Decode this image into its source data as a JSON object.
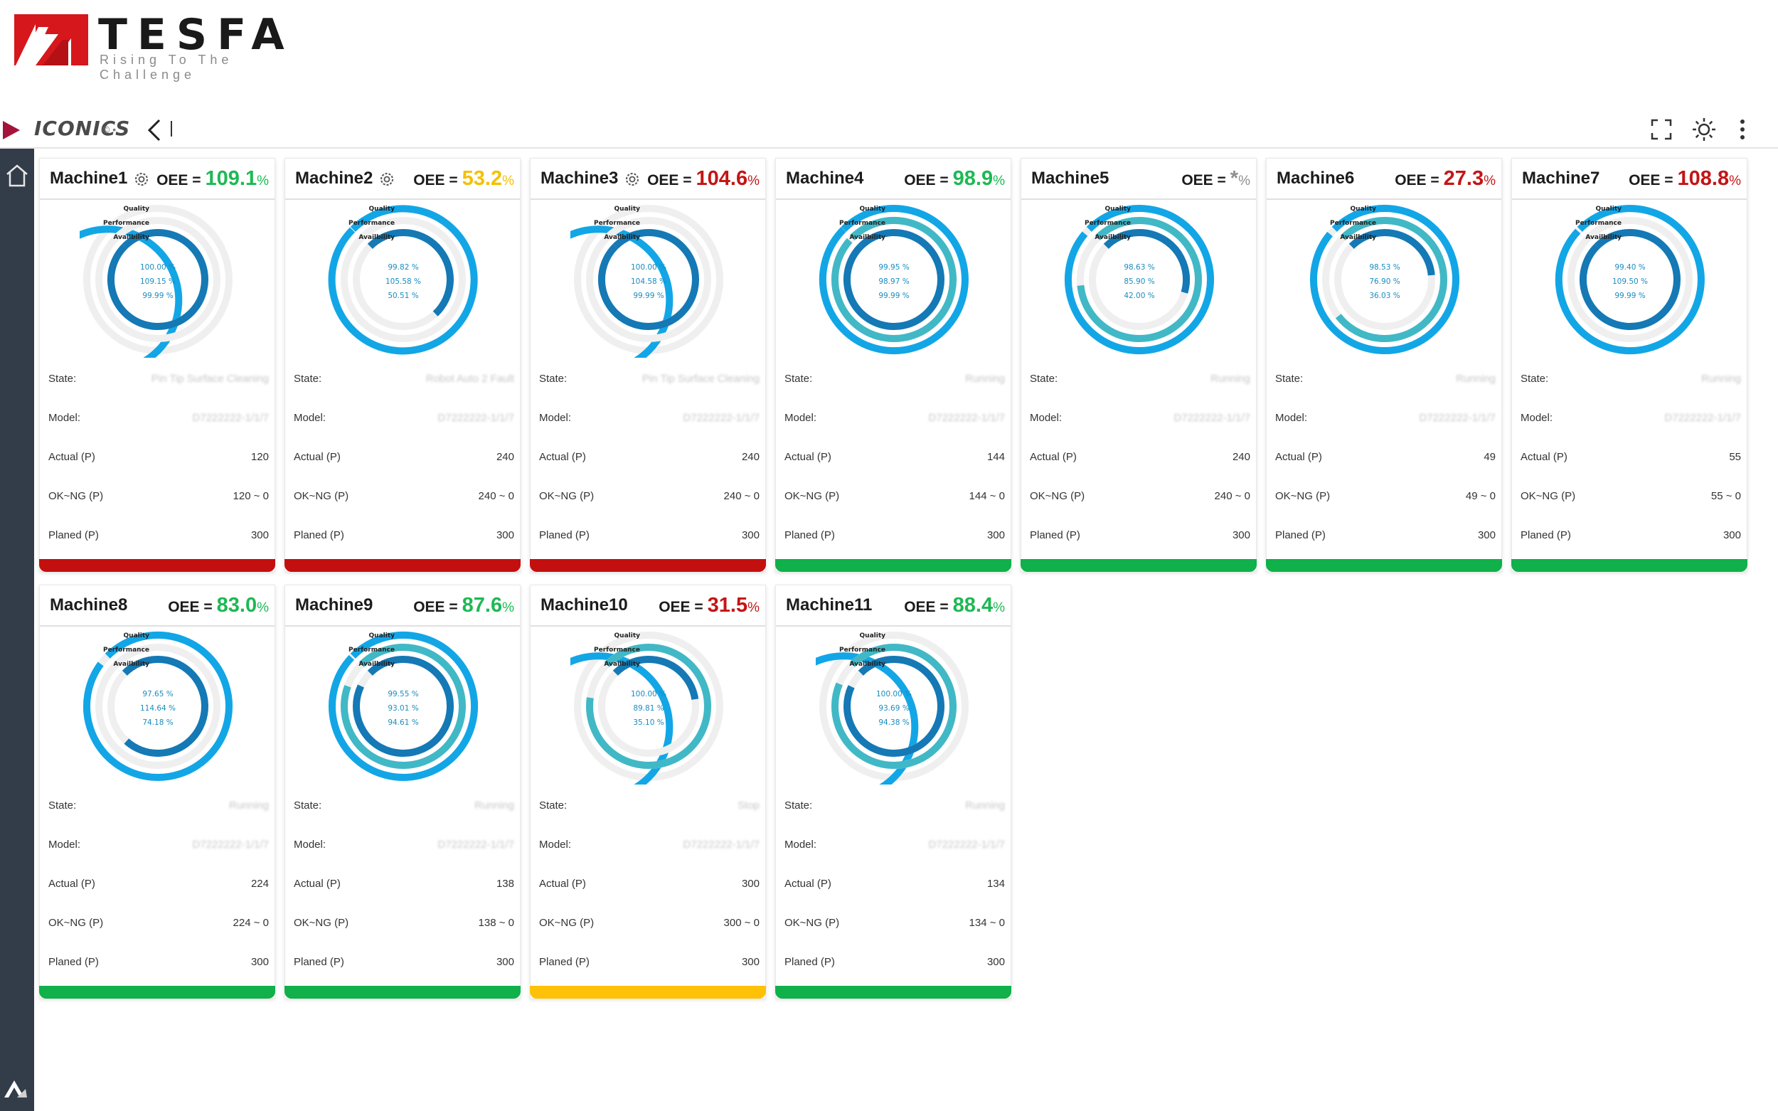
{
  "brand": {
    "name": "TESFA",
    "tagline": "Rising To The Challenge"
  },
  "toolbar": {
    "app_logo": "ICONICS",
    "app_logo_mark": "© •"
  },
  "labels": {
    "oee": "OEE =",
    "state": "State:",
    "model": "Model:",
    "actual": "Actual (P)",
    "ok_ng": "OK~NG (P)",
    "planned": "Planed (P)"
  },
  "rings_legend": {
    "quality": "Quality",
    "performance": "Performance",
    "availability": "Availbility"
  },
  "colors": {
    "outer_ring": "#12a6e6",
    "middle_ring": "#41b8c6",
    "inner_ring": "#1479b5",
    "track": "#efefef",
    "status_red": "#c40f0f",
    "status_green": "#10b04a",
    "status_yellow": "#ffc107",
    "oee_green": "#1db954",
    "oee_red": "#c41515",
    "oee_yellow": "#f5c000",
    "oee_gray": "#8f8f8f"
  },
  "machines": [
    {
      "name": "Machine1",
      "gear": true,
      "oee": "109.1",
      "oee_color": "#1db954",
      "quality": 100.0,
      "performance": 109.15,
      "availability": 99.99,
      "quality_text": "100.00 %",
      "performance_text": "109.15 %",
      "availability_text": "99.99 %",
      "state": "Pin Tip Surface Cleaning",
      "state_prefix": "Pin",
      "model": "D7222222-1/1/7",
      "actual": "120",
      "ok_ng": "120 ~ 0",
      "planned": "300",
      "status": "red"
    },
    {
      "name": "Machine2",
      "gear": true,
      "oee": "53.2",
      "oee_color": "#f5c000",
      "quality": 99.82,
      "performance": 105.58,
      "availability": 50.51,
      "quality_text": "99.82 %",
      "performance_text": "105.58 %",
      "availability_text": "50.51 %",
      "state": "Robot Auto 2 Fault",
      "state_prefix": "",
      "model": "D7222222-1/1/7",
      "actual": "240",
      "ok_ng": "240 ~ 0",
      "planned": "300",
      "status": "red"
    },
    {
      "name": "Machine3",
      "gear": true,
      "oee": "104.6",
      "oee_color": "#c41515",
      "quality": 100.0,
      "performance": 104.58,
      "availability": 99.99,
      "quality_text": "100.00 %",
      "performance_text": "104.58 %",
      "availability_text": "99.99 %",
      "state": "Pin Tip Surface Cleaning",
      "state_prefix": "Pin",
      "model": "D7222222-1/1/7",
      "actual": "240",
      "ok_ng": "240 ~ 0",
      "planned": "300",
      "status": "red"
    },
    {
      "name": "Machine4",
      "gear": false,
      "oee": "98.9",
      "oee_color": "#1db954",
      "quality": 99.95,
      "performance": 98.97,
      "availability": 99.99,
      "quality_text": "99.95 %",
      "performance_text": "98.97 %",
      "availability_text": "99.99 %",
      "state": "Running",
      "state_prefix": "",
      "model": "D7222222-1/1/7",
      "actual": "144",
      "ok_ng": "144 ~ 0",
      "planned": "300",
      "status": "green"
    },
    {
      "name": "Machine5",
      "gear": false,
      "oee": "*",
      "oee_color": "#8f8f8f",
      "quality": 98.63,
      "performance": 85.9,
      "availability": 42.0,
      "quality_text": "98.63 %",
      "performance_text": "85.90 %",
      "availability_text": "42.00 %",
      "state": "Running",
      "state_prefix": "",
      "model": "D7222222-1/1/7",
      "actual": "240",
      "ok_ng": "240 ~ 0",
      "planned": "300",
      "status": "green"
    },
    {
      "name": "Machine6",
      "gear": false,
      "oee": "27.3",
      "oee_color": "#c41515",
      "quality": 98.53,
      "performance": 76.9,
      "availability": 36.03,
      "quality_text": "98.53 %",
      "performance_text": "76.90 %",
      "availability_text": "36.03 %",
      "state": "Running",
      "state_prefix": "",
      "model": "D7222222-1/1/7",
      "actual": "49",
      "ok_ng": "49 ~ 0",
      "planned": "300",
      "status": "green"
    },
    {
      "name": "Machine7",
      "gear": false,
      "oee": "108.8",
      "oee_color": "#c41515",
      "quality": 99.4,
      "performance": 109.5,
      "availability": 99.99,
      "quality_text": "99.40 %",
      "performance_text": "109.50 %",
      "availability_text": "99.99 %",
      "state": "Running",
      "state_prefix": "",
      "model": "D7222222-1/1/7",
      "actual": "55",
      "ok_ng": "55 ~ 0",
      "planned": "300",
      "status": "green"
    },
    {
      "name": "Machine8",
      "gear": false,
      "oee": "83.0",
      "oee_color": "#1db954",
      "quality": 97.65,
      "performance": 114.64,
      "availability": 74.18,
      "quality_text": "97.65 %",
      "performance_text": "114.64 %",
      "availability_text": "74.18 %",
      "state": "Running",
      "state_prefix": "",
      "model": "D7222222-1/1/7",
      "actual": "224",
      "ok_ng": "224 ~ 0",
      "planned": "300",
      "status": "green"
    },
    {
      "name": "Machine9",
      "gear": false,
      "oee": "87.6",
      "oee_color": "#1db954",
      "quality": 99.55,
      "performance": 93.01,
      "availability": 94.61,
      "quality_text": "99.55 %",
      "performance_text": "93.01 %",
      "availability_text": "94.61 %",
      "state": "Running",
      "state_prefix": "",
      "model": "D7222222-1/1/7",
      "actual": "138",
      "ok_ng": "138 ~ 0",
      "planned": "300",
      "status": "green"
    },
    {
      "name": "Machine10",
      "gear": false,
      "oee": "31.5",
      "oee_color": "#c41515",
      "quality": 100.0,
      "performance": 89.81,
      "availability": 35.1,
      "quality_text": "100.00 %",
      "performance_text": "89.81 %",
      "availability_text": "35.10 %",
      "state": "Stop",
      "state_prefix": "",
      "model": "D7222222-1/1/7",
      "actual": "300",
      "ok_ng": "300 ~ 0",
      "planned": "300",
      "status": "yellow"
    },
    {
      "name": "Machine11",
      "gear": false,
      "oee": "88.4",
      "oee_color": "#1db954",
      "quality": 100.0,
      "performance": 93.69,
      "availability": 94.38,
      "quality_text": "100.00 %",
      "performance_text": "93.69 %",
      "availability_text": "94.38 %",
      "state": "Running",
      "state_prefix": "",
      "model": "D7222222-1/1/7",
      "actual": "134",
      "ok_ng": "134 ~ 0",
      "planned": "300",
      "status": "green"
    }
  ]
}
